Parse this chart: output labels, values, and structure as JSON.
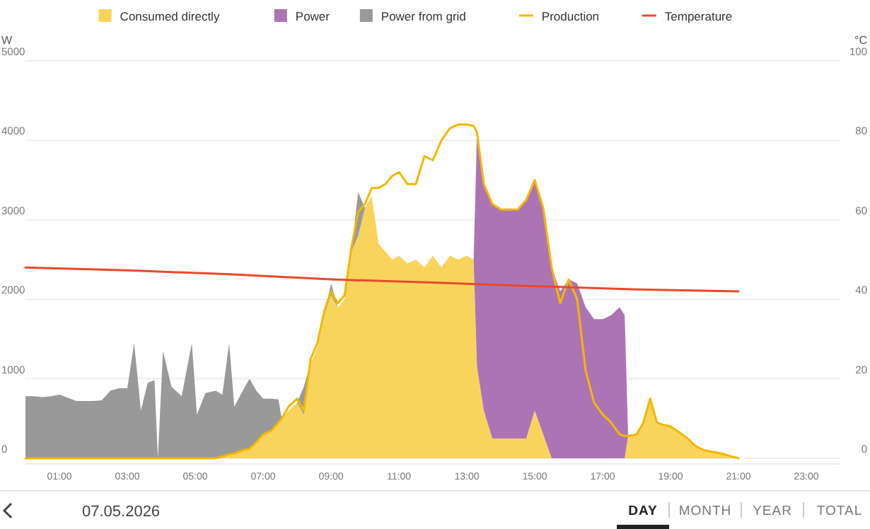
{
  "chart_data": {
    "type": "area",
    "stacked": true,
    "ylabel": "W",
    "y2label": "°C",
    "legend": "top",
    "grid": "y",
    "x": [
      0,
      0.25,
      0.5,
      0.75,
      1,
      1.25,
      1.5,
      1.75,
      2,
      2.25,
      2.5,
      2.75,
      3,
      3.2,
      3.4,
      3.6,
      3.8,
      3.9,
      4.05,
      4.3,
      4.6,
      4.9,
      5.05,
      5.3,
      5.6,
      5.8,
      6.0,
      6.15,
      6.4,
      6.6,
      6.8,
      7.0,
      7.25,
      7.45,
      7.55,
      7.75,
      8.0,
      8.2,
      8.4,
      8.6,
      8.8,
      9.0,
      9.2,
      9.4,
      9.6,
      9.8,
      10.0,
      10.2,
      10.4,
      10.6,
      10.8,
      11.0,
      11.25,
      11.5,
      11.75,
      12.0,
      12.25,
      12.5,
      12.75,
      13.0,
      13.2,
      13.3,
      13.5,
      13.75,
      14.0,
      14.25,
      14.5,
      14.75,
      15.0,
      15.25,
      15.5,
      15.75,
      16.0,
      16.25,
      16.5,
      16.75,
      17.0,
      17.25,
      17.5,
      17.65,
      17.75,
      18.0,
      18.2,
      18.4,
      18.6,
      18.8,
      19.0,
      19.25,
      19.5,
      19.75,
      20.0,
      20.25,
      20.5,
      20.75,
      21.0
    ],
    "xlim": [
      0,
      24
    ],
    "xticks": [
      {
        "value": 1,
        "label": "01:00"
      },
      {
        "value": 3,
        "label": "03:00"
      },
      {
        "value": 5,
        "label": "05:00"
      },
      {
        "value": 7,
        "label": "07:00"
      },
      {
        "value": 9,
        "label": "09:00"
      },
      {
        "value": 11,
        "label": "11:00"
      },
      {
        "value": 13,
        "label": "13:00"
      },
      {
        "value": 15,
        "label": "15:00"
      },
      {
        "value": 17,
        "label": "17:00"
      },
      {
        "value": 19,
        "label": "19:00"
      },
      {
        "value": 21,
        "label": "21:00"
      },
      {
        "value": 23,
        "label": "23:00"
      }
    ],
    "ylim": [
      0,
      5000
    ],
    "yticks": [
      0,
      1000,
      2000,
      3000,
      4000,
      5000
    ],
    "y2lim": [
      0,
      100
    ],
    "y2ticks": [
      0,
      20,
      40,
      60,
      80,
      100
    ],
    "series": [
      {
        "name": "Consumed directly",
        "color": "#f9d45c",
        "values": [
          0,
          0,
          0,
          0,
          0,
          0,
          0,
          0,
          0,
          0,
          0,
          0,
          0,
          0,
          0,
          0,
          0,
          0,
          0,
          0,
          0,
          0,
          0,
          0,
          0,
          20,
          50,
          60,
          100,
          120,
          200,
          300,
          350,
          450,
          500,
          600,
          700,
          550,
          1200,
          1400,
          1800,
          2050,
          1900,
          2000,
          2600,
          2800,
          3150,
          3300,
          2700,
          2600,
          2500,
          2550,
          2450,
          2500,
          2400,
          2550,
          2400,
          2550,
          2500,
          2550,
          2500,
          1150,
          600,
          250,
          250,
          250,
          250,
          250,
          600,
          300,
          0,
          0,
          0,
          0,
          0,
          0,
          0,
          0,
          0,
          0,
          280,
          300,
          450,
          750,
          450,
          420,
          400,
          330,
          250,
          150,
          100,
          80,
          60,
          30,
          0
        ]
      },
      {
        "name": "Power",
        "color": "#ad74b5",
        "values": [
          0,
          0,
          0,
          0,
          0,
          0,
          0,
          0,
          0,
          0,
          0,
          0,
          0,
          0,
          0,
          0,
          0,
          0,
          0,
          0,
          0,
          0,
          0,
          0,
          0,
          0,
          0,
          0,
          0,
          0,
          0,
          0,
          0,
          0,
          0,
          0,
          0,
          0,
          0,
          0,
          0,
          0,
          0,
          0,
          0,
          0,
          0,
          0,
          0,
          0,
          0,
          0,
          0,
          0,
          0,
          0,
          0,
          0,
          0,
          0,
          0,
          2950,
          2850,
          2950,
          2880,
          2880,
          2880,
          3000,
          2900,
          2850,
          2400,
          2100,
          2250,
          2200,
          1900,
          1750,
          1750,
          1800,
          1900,
          1800,
          0,
          0,
          0,
          0,
          0,
          0,
          0,
          0,
          0,
          0,
          0,
          0,
          0,
          0,
          0
        ]
      },
      {
        "name": "Power from grid",
        "color": "#999999",
        "values": [
          780,
          780,
          770,
          780,
          800,
          760,
          720,
          720,
          720,
          730,
          850,
          880,
          880,
          1450,
          600,
          950,
          980,
          0,
          1350,
          900,
          780,
          1450,
          550,
          820,
          850,
          780,
          1400,
          590,
          750,
          880,
          650,
          450,
          400,
          290,
          0,
          null,
          0,
          350,
          0,
          null,
          0,
          150,
          0,
          null,
          0,
          550,
          0,
          null,
          null,
          null,
          null,
          null,
          null,
          null,
          null,
          null,
          null,
          null,
          null,
          null,
          null,
          null,
          null,
          null,
          null,
          null,
          null,
          null,
          null,
          null,
          null,
          null,
          null,
          null,
          null,
          null,
          null,
          null,
          null,
          null,
          null,
          null,
          null,
          null,
          null,
          null,
          null,
          null,
          null,
          null,
          null,
          null,
          null,
          null,
          null
        ]
      },
      {
        "name": "Production",
        "type": "line",
        "color": "#f2b800",
        "values": [
          0,
          0,
          0,
          0,
          0,
          0,
          0,
          0,
          0,
          0,
          0,
          0,
          0,
          0,
          0,
          0,
          0,
          0,
          0,
          0,
          0,
          0,
          0,
          0,
          0,
          20,
          50,
          60,
          100,
          120,
          200,
          300,
          350,
          450,
          500,
          650,
          750,
          600,
          1250,
          1450,
          1850,
          2100,
          1950,
          2050,
          2650,
          3100,
          3200,
          3400,
          3400,
          3450,
          3550,
          3600,
          3450,
          3450,
          3800,
          3750,
          4000,
          4150,
          4200,
          4200,
          4180,
          4100,
          3450,
          3200,
          3130,
          3130,
          3130,
          3250,
          3500,
          3150,
          2400,
          1950,
          2250,
          2000,
          1100,
          700,
          550,
          450,
          300,
          280,
          280,
          300,
          450,
          750,
          450,
          420,
          400,
          330,
          250,
          150,
          100,
          80,
          60,
          30,
          0
        ]
      },
      {
        "name": "Temperature",
        "type": "line",
        "axis": "y2",
        "color": "#e8492a",
        "x": [
          0,
          3,
          6,
          9,
          12,
          15,
          18,
          21
        ],
        "values": [
          48,
          47.3,
          46.3,
          45,
          44.2,
          43.3,
          42.5,
          42
        ]
      }
    ],
    "annotations": [
      "07.05.2026",
      "DAY",
      "MONTH",
      "YEAR",
      "TOTAL"
    ]
  }
}
